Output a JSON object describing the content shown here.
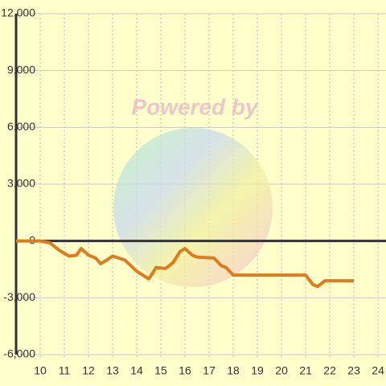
{
  "chart_data": {
    "type": "line",
    "watermark": "Powered by",
    "x": [
      9,
      10,
      10.4,
      10.8,
      11.2,
      11.5,
      11.7,
      12,
      12.3,
      12.5,
      12.7,
      13,
      13.5,
      14,
      14.5,
      14.8,
      15.2,
      15.5,
      15.8,
      16,
      16.3,
      16.5,
      17.2,
      17.5,
      17.7,
      18,
      21,
      21.3,
      21.5,
      21.8,
      23
    ],
    "series": [
      {
        "color": "#e07a1f",
        "values": [
          0,
          0,
          -100,
          -500,
          -800,
          -750,
          -400,
          -750,
          -900,
          -1200,
          -1050,
          -800,
          -1000,
          -1600,
          -2000,
          -1400,
          -1450,
          -1150,
          -550,
          -400,
          -750,
          -850,
          -900,
          -1300,
          -1400,
          -1800,
          -1800,
          -2300,
          -2400,
          -2100,
          -2100
        ]
      }
    ],
    "xlim": [
      9,
      24.33
    ],
    "xticks": [
      10,
      11,
      12,
      13,
      14,
      15,
      16,
      17,
      18,
      19,
      20,
      21,
      22,
      23,
      24
    ],
    "ylim": [
      -6000,
      12000
    ],
    "yticks": [
      {
        "value": -6000,
        "label": "-6,000"
      },
      {
        "value": -3000,
        "label": "-3,000"
      },
      0,
      {
        "value": 3000,
        "label": "3,000"
      },
      {
        "value": 6000,
        "label": "6,000"
      },
      {
        "value": 9000,
        "label": "9,000"
      },
      {
        "value": 12000,
        "label": "12,000"
      }
    ],
    "grid": true
  }
}
